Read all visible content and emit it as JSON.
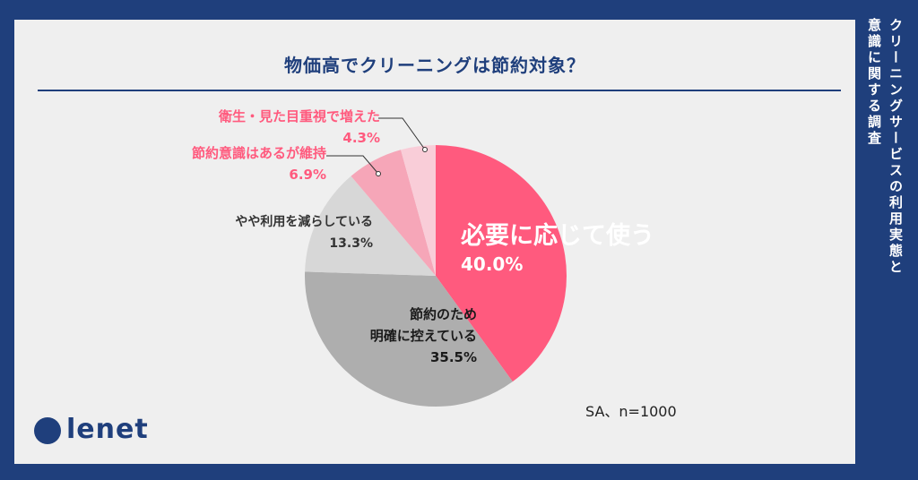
{
  "title": "物価高でクリーニングは節約対象？",
  "side_text": [
    "クリーニングサービスの利用実態と",
    "意識に関する調査"
  ],
  "sample_note": "SA、n=1000",
  "logo_text": "lenet",
  "colors": {
    "background": "#1f3f7c",
    "card": "#efefef",
    "accent_pink": "#ff5a7e"
  },
  "chart_data": {
    "type": "pie",
    "title": "物価高でクリーニングは節約対象？",
    "slices": [
      {
        "label_lines": [
          "必要に応じて使う"
        ],
        "value": 40.0,
        "value_label": "40.0%",
        "color": "#ff5a7e",
        "label_color": "#ffffff"
      },
      {
        "label_lines": [
          "節約のため",
          "明確に控えている"
        ],
        "value": 35.5,
        "value_label": "35.5%",
        "color": "#aeaeae",
        "label_color": "#1a1a1a"
      },
      {
        "label_lines": [
          "やや利用を減らしている"
        ],
        "value": 13.3,
        "value_label": "13.3%",
        "color": "#d7d7d7",
        "label_color": "#333333"
      },
      {
        "label_lines": [
          "節約意識はあるが維持"
        ],
        "value": 6.9,
        "value_label": "6.9%",
        "color": "#f6a6b8",
        "label_color": "#ff5a7e"
      },
      {
        "label_lines": [
          "衛生・見た目重視で増えた"
        ],
        "value": 4.3,
        "value_label": "4.3%",
        "color": "#f9cdd8",
        "label_color": "#ff5a7e"
      }
    ]
  }
}
